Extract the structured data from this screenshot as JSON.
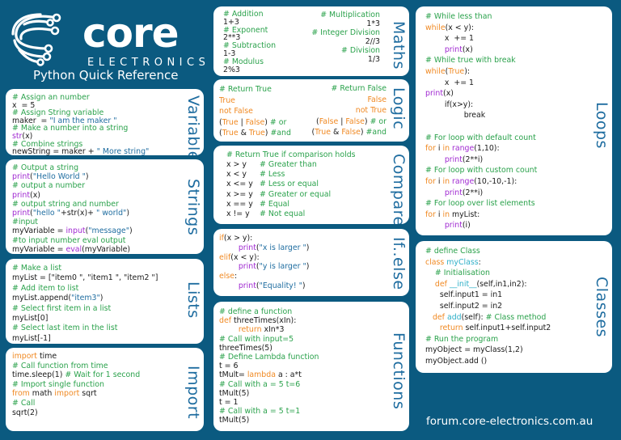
{
  "header": {
    "brand": "core",
    "brand_sub": "ELECTRONICS",
    "title": "Python Quick Reference"
  },
  "footer": {
    "url": "forum.core-electronics.com.au"
  },
  "colors": {
    "background": "#0b5a80",
    "comment": "#2ba24c",
    "keyword": "#f08a24",
    "builtin": "#a12bd2",
    "string": "#1f6da0",
    "label": "#1f6da0"
  },
  "sections": {
    "variable": {
      "label": "Variable",
      "lines": [
        [
          [
            "c",
            "# Assign an number"
          ]
        ],
        [
          [
            "p",
            "x  = 5"
          ]
        ],
        [
          [
            "c",
            "# Assign String variable"
          ]
        ],
        [
          [
            "p",
            "maker  = "
          ],
          [
            "s",
            "\"I am the maker \""
          ]
        ],
        [
          [
            "c",
            "# Make a number into a string"
          ]
        ],
        [
          [
            "f",
            "str"
          ],
          [
            "p",
            "(x)"
          ]
        ],
        [
          [
            "c",
            "# Combine strings"
          ]
        ],
        [
          [
            "p",
            "newString = maker + "
          ],
          [
            "s",
            "\" More string\""
          ]
        ]
      ]
    },
    "strings": {
      "label": "Strings",
      "lines": [
        [
          [
            "c",
            "# Output a string"
          ]
        ],
        [
          [
            "f",
            "print"
          ],
          [
            "p",
            "("
          ],
          [
            "s",
            "\"Hello World \""
          ],
          [
            "p",
            ")"
          ]
        ],
        [
          [
            "c",
            "# output a number"
          ]
        ],
        [
          [
            "f",
            "print"
          ],
          [
            "p",
            "(x)"
          ]
        ],
        [
          [
            "c",
            "# output string and number"
          ]
        ],
        [
          [
            "f",
            "print"
          ],
          [
            "p",
            "("
          ],
          [
            "s",
            "\"hello \""
          ],
          [
            "p",
            "+str(x)+ "
          ],
          [
            "s",
            "\" world\""
          ],
          [
            "p",
            ")"
          ]
        ],
        [
          [
            "c",
            "#input"
          ]
        ],
        [
          [
            "p",
            "myVariable = "
          ],
          [
            "f",
            "input"
          ],
          [
            "p",
            "("
          ],
          [
            "s",
            "\"message\""
          ],
          [
            "p",
            ")"
          ]
        ],
        [
          [
            "c",
            "#to input number eval output"
          ]
        ],
        [
          [
            "p",
            "myVariable = "
          ],
          [
            "f",
            "eval"
          ],
          [
            "p",
            "(myVariable)"
          ]
        ]
      ]
    },
    "lists": {
      "label": "Lists",
      "lines": [
        [
          [
            "c",
            "# Make a list"
          ]
        ],
        [
          [
            "p",
            "myList = [\"item0 \", \"item1 \", \"item2 \"]"
          ]
        ],
        [
          [
            "c",
            "# Add item to list"
          ]
        ],
        [
          [
            "p",
            "myList.append("
          ],
          [
            "s",
            "\"item3\""
          ],
          [
            "p",
            ")"
          ]
        ],
        [
          [
            "c",
            "# Select first item in a list"
          ]
        ],
        [
          [
            "p",
            "myList[0]"
          ]
        ],
        [
          [
            "c",
            "# Select last item in the list"
          ]
        ],
        [
          [
            "p",
            "myList[-1]"
          ]
        ]
      ]
    },
    "import": {
      "label": "Import",
      "lines": [
        [
          [
            "k",
            "import"
          ],
          [
            "p",
            " time"
          ]
        ],
        [
          [
            "c",
            "# Call function from time"
          ]
        ],
        [
          [
            "p",
            "time.sleep(1) "
          ],
          [
            "c",
            "# Wait for 1 second"
          ]
        ],
        [
          [
            "c",
            "# Import single function"
          ]
        ],
        [
          [
            "k",
            "from"
          ],
          [
            "p",
            " math "
          ],
          [
            "k",
            "import"
          ],
          [
            "p",
            " sqrt"
          ]
        ],
        [
          [
            "c",
            "# Call"
          ]
        ],
        [
          [
            "p",
            "sqrt(2)"
          ]
        ]
      ]
    },
    "maths": {
      "label": "Maths",
      "left": [
        [
          [
            "c",
            "# Addition"
          ]
        ],
        [
          [
            "p",
            "1+3"
          ]
        ],
        [
          [
            "c",
            "# Exponent"
          ]
        ],
        [
          [
            "p",
            "2**3"
          ]
        ],
        [
          [
            "c",
            "# Subtraction"
          ]
        ],
        [
          [
            "p",
            "1-3"
          ]
        ],
        [
          [
            "c",
            "# Modulus"
          ]
        ],
        [
          [
            "p",
            "2%3"
          ]
        ]
      ],
      "right": [
        [
          [
            "c",
            "# Multiplication"
          ]
        ],
        [
          [
            "p",
            "1*3"
          ]
        ],
        [
          [
            "c",
            "# Integer Division"
          ]
        ],
        [
          [
            "p",
            "2//3"
          ]
        ],
        [
          [
            "c",
            "# Division"
          ]
        ],
        [
          [
            "p",
            "1/3"
          ]
        ]
      ]
    },
    "logic": {
      "label": "Logic",
      "left": [
        [
          [
            "c",
            "# Return True"
          ]
        ],
        [
          [
            "k",
            "True"
          ]
        ],
        [
          [
            "k",
            "not False"
          ]
        ],
        [
          [
            "p",
            "("
          ],
          [
            "k",
            "True"
          ],
          [
            "p",
            " | "
          ],
          [
            "k",
            "False"
          ],
          [
            "p",
            ") "
          ],
          [
            "c",
            "# or"
          ]
        ],
        [
          [
            "p",
            "("
          ],
          [
            "k",
            "True"
          ],
          [
            "p",
            " & "
          ],
          [
            "k",
            "True"
          ],
          [
            "p",
            ") "
          ],
          [
            "c",
            "#and"
          ]
        ]
      ],
      "right": [
        [
          [
            "c",
            "# Return False"
          ]
        ],
        [
          [
            "k",
            "False"
          ]
        ],
        [
          [
            "k",
            "not True"
          ]
        ],
        [
          [
            "p",
            "("
          ],
          [
            "k",
            "False"
          ],
          [
            "p",
            " | "
          ],
          [
            "k",
            "False"
          ],
          [
            "p",
            ") "
          ],
          [
            "c",
            "# or"
          ]
        ],
        [
          [
            "p",
            "("
          ],
          [
            "k",
            "True"
          ],
          [
            "p",
            " & "
          ],
          [
            "k",
            "False"
          ],
          [
            "p",
            ") "
          ],
          [
            "c",
            "#and"
          ]
        ]
      ]
    },
    "compare": {
      "label": "Compare",
      "header": "# Return True if comparison holds",
      "rows": [
        {
          "op": "x > y",
          "comment": "# Greater than"
        },
        {
          "op": "x < y",
          "comment": "# Less"
        },
        {
          "op": "x <= y",
          "comment": "# Less or equal"
        },
        {
          "op": "x >= y",
          "comment": "# Greater or equal"
        },
        {
          "op": "x == y",
          "comment": "# Equal"
        },
        {
          "op": "x != y",
          "comment": "# Not equal"
        }
      ]
    },
    "ifelse": {
      "label": "If..else",
      "lines": [
        [
          [
            "k",
            "if"
          ],
          [
            "p",
            "(x > y):"
          ]
        ],
        [
          [
            "i",
            "        "
          ],
          [
            "f",
            "print"
          ],
          [
            "p",
            "("
          ],
          [
            "s",
            "\"x is larger \""
          ],
          [
            "p",
            ")"
          ]
        ],
        [
          [
            "k",
            "elif"
          ],
          [
            "p",
            "(x < y):"
          ]
        ],
        [
          [
            "i",
            "        "
          ],
          [
            "f",
            "print"
          ],
          [
            "p",
            "("
          ],
          [
            "s",
            "\"y is larger \""
          ],
          [
            "p",
            ")"
          ]
        ],
        [
          [
            "k",
            "else"
          ],
          [
            "p",
            ":"
          ]
        ],
        [
          [
            "i",
            "        "
          ],
          [
            "f",
            "print"
          ],
          [
            "p",
            "("
          ],
          [
            "s",
            "\"Equality! \""
          ],
          [
            "p",
            ")"
          ]
        ]
      ]
    },
    "functions": {
      "label": "Functions",
      "lines": [
        [
          [
            "c",
            "# define a function"
          ]
        ],
        [
          [
            "k",
            "def"
          ],
          [
            "p",
            " threeTimes(xIn):"
          ]
        ],
        [
          [
            "i",
            "        "
          ],
          [
            "k",
            "return"
          ],
          [
            "p",
            " xIn*3"
          ]
        ],
        [
          [
            "c",
            "# Call with input=5"
          ]
        ],
        [
          [
            "p",
            "threeTimes(5)"
          ]
        ],
        [
          [
            "c",
            "# Define Lambda function"
          ]
        ],
        [
          [
            "p",
            "t = 6"
          ]
        ],
        [
          [
            "p",
            "tMult= "
          ],
          [
            "k",
            "lambda"
          ],
          [
            "p",
            " a : a*t"
          ]
        ],
        [
          [
            "c",
            "# Call with a = 5 t=6"
          ]
        ],
        [
          [
            "p",
            "tMult(5)"
          ]
        ],
        [
          [
            "p",
            "t = 1"
          ]
        ],
        [
          [
            "c",
            "# Call with a = 5 t=1"
          ]
        ],
        [
          [
            "p",
            "tMult(5)"
          ]
        ]
      ]
    },
    "loops": {
      "label": "Loops",
      "lines": [
        [
          [
            "c",
            "# While less than"
          ]
        ],
        [
          [
            "k",
            "while"
          ],
          [
            "p",
            "(x < y):"
          ]
        ],
        [
          [
            "i",
            "        "
          ],
          [
            "p",
            "x  += 1"
          ]
        ],
        [
          [
            "i",
            "        "
          ],
          [
            "f",
            "print"
          ],
          [
            "p",
            "(x)"
          ]
        ],
        [
          [
            "c",
            "# While true with break"
          ]
        ],
        [
          [
            "k",
            "while"
          ],
          [
            "p",
            "("
          ],
          [
            "k",
            "True"
          ],
          [
            "p",
            "):"
          ]
        ],
        [
          [
            "i",
            "        "
          ],
          [
            "p",
            "x  += 1"
          ]
        ],
        [
          [
            "f",
            "print"
          ],
          [
            "p",
            "(x)"
          ]
        ],
        [
          [
            "i",
            "        "
          ],
          [
            "p",
            "if(x>y):"
          ]
        ],
        [
          [
            "i",
            "                "
          ],
          [
            "p",
            "break"
          ]
        ],
        [
          [
            "p",
            ""
          ]
        ],
        [
          [
            "c",
            "# For loop with default count"
          ]
        ],
        [
          [
            "k",
            "for"
          ],
          [
            "p",
            " i "
          ],
          [
            "k",
            "in"
          ],
          [
            "p",
            " "
          ],
          [
            "f",
            "range"
          ],
          [
            "p",
            "(1,10):"
          ]
        ],
        [
          [
            "i",
            "        "
          ],
          [
            "f",
            "print"
          ],
          [
            "p",
            "(2**i)"
          ]
        ],
        [
          [
            "c",
            "# For loop with custom count"
          ]
        ],
        [
          [
            "k",
            "for"
          ],
          [
            "p",
            " i "
          ],
          [
            "k",
            "in"
          ],
          [
            "p",
            " "
          ],
          [
            "f",
            "range"
          ],
          [
            "p",
            "(10,-10,-1):"
          ]
        ],
        [
          [
            "i",
            "        "
          ],
          [
            "f",
            "print"
          ],
          [
            "p",
            "(2**i)"
          ]
        ],
        [
          [
            "c",
            "# For loop over list elements"
          ]
        ],
        [
          [
            "k",
            "for"
          ],
          [
            "p",
            " i "
          ],
          [
            "k",
            "in"
          ],
          [
            "p",
            " myList:"
          ]
        ],
        [
          [
            "i",
            "        "
          ],
          [
            "f",
            "print"
          ],
          [
            "p",
            "(i)"
          ]
        ]
      ]
    },
    "classes": {
      "label": "Classes",
      "lines": [
        [
          [
            "c",
            "# define Class"
          ]
        ],
        [
          [
            "k",
            "class"
          ],
          [
            "p",
            " "
          ],
          [
            "t",
            "myClass"
          ],
          [
            "p",
            ":"
          ]
        ],
        [
          [
            "i",
            "    "
          ],
          [
            "c",
            "# Initialisation"
          ]
        ],
        [
          [
            "i",
            "    "
          ],
          [
            "k",
            "def"
          ],
          [
            "p",
            " "
          ],
          [
            "t",
            "__init__"
          ],
          [
            "p",
            "(self,in1,in2):"
          ]
        ],
        [
          [
            "i",
            "      "
          ],
          [
            "p",
            "self.input1 = in1"
          ]
        ],
        [
          [
            "i",
            "      "
          ],
          [
            "p",
            "self.input2 = in2"
          ]
        ],
        [
          [
            "i",
            "   "
          ],
          [
            "k",
            "def"
          ],
          [
            "p",
            " "
          ],
          [
            "t",
            "add"
          ],
          [
            "p",
            "(self): "
          ],
          [
            "c",
            "# Class method"
          ]
        ],
        [
          [
            "i",
            "      "
          ],
          [
            "k",
            "return"
          ],
          [
            "p",
            " self.input1+self.input2"
          ]
        ],
        [
          [
            "c",
            "# Run the program"
          ]
        ],
        [
          [
            "p",
            "myObject = myClass(1,2)"
          ]
        ],
        [
          [
            "p",
            "myObject.add ()"
          ]
        ]
      ]
    }
  }
}
